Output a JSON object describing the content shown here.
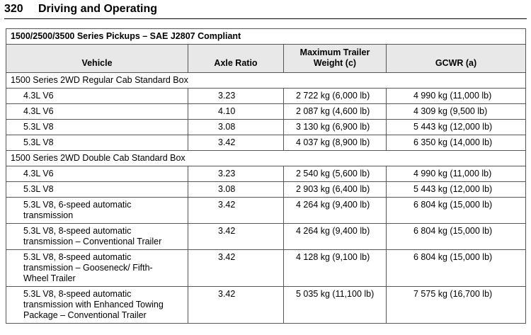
{
  "header": {
    "page_number": "320",
    "title": "Driving and Operating"
  },
  "table": {
    "title": "1500/2500/3500 Series Pickups – SAE J2807 Compliant",
    "columns": [
      "Vehicle",
      "Axle Ratio",
      "Maximum Trailer Weight (c)",
      "GCWR (a)"
    ],
    "sections": [
      {
        "label": "1500 Series 2WD Regular Cab Standard Box",
        "rows": [
          [
            "4.3L V6",
            "3.23",
            "2 722 kg (6,000 lb)",
            "4 990 kg (11,000 lb)"
          ],
          [
            "4.3L V6",
            "4.10",
            "2 087 kg (4,600 lb)",
            "4 309 kg (9,500 lb)"
          ],
          [
            "5.3L V8",
            "3.08",
            "3 130 kg (6,900 lb)",
            "5 443 kg (12,000 lb)"
          ],
          [
            "5.3L V8",
            "3.42",
            "4 037 kg (8,900 lb)",
            "6 350 kg (14,000 lb)"
          ]
        ]
      },
      {
        "label": "1500 Series 2WD Double Cab Standard Box",
        "rows": [
          [
            "4.3L V6",
            "3.23",
            "2 540 kg (5,600 lb)",
            "4 990 kg (11,000 lb)"
          ],
          [
            "5.3L V8",
            "3.08",
            "2 903 kg (6,400 lb)",
            "5 443 kg (12,000 lb)"
          ],
          [
            "5.3L V8, 6-speed automatic transmission",
            "3.42",
            "4 264 kg (9,400 lb)",
            "6 804 kg (15,000 lb)"
          ],
          [
            "5.3L V8, 8-speed automatic transmission – Conventional Trailer",
            "3.42",
            "4 264 kg (9,400 lb)",
            "6 804 kg (15,000 lb)"
          ],
          [
            "5.3L V8, 8-speed automatic transmission – Gooseneck/ Fifth-Wheel Trailer",
            "3.42",
            "4 128 kg (9,100 lb)",
            "6 804 kg (15,000 lb)"
          ],
          [
            "5.3L V8, 8-speed automatic transmission with Enhanced Towing Package – Conventional Trailer",
            "3.42",
            "5 035 kg (11,100 lb)",
            "7 575 kg (16,700 lb)"
          ]
        ]
      }
    ]
  }
}
